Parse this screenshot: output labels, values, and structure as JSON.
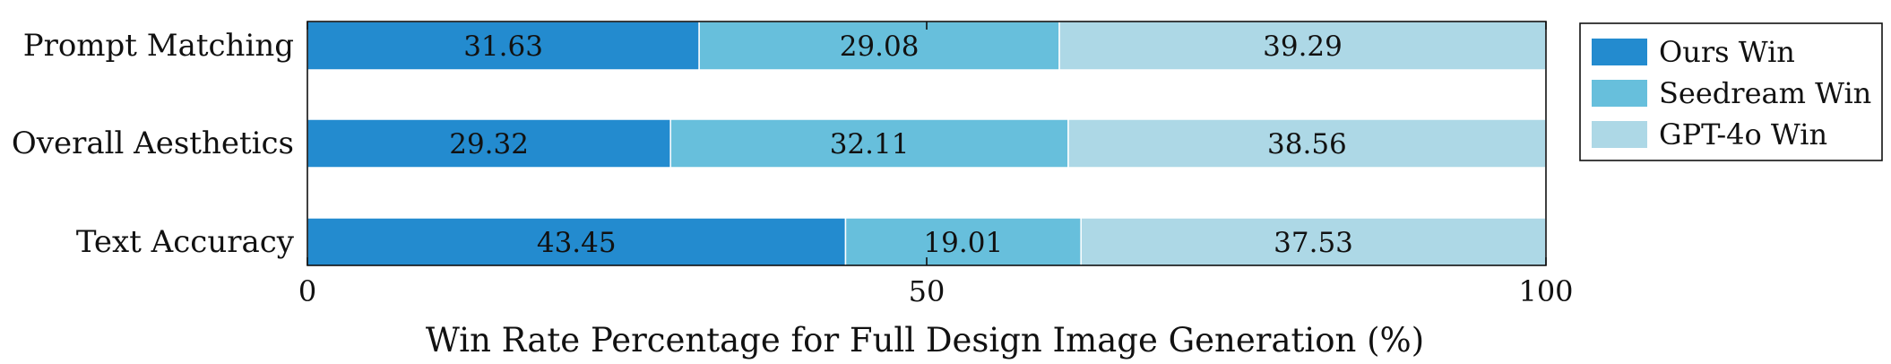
{
  "chart_data": {
    "type": "bar",
    "orientation": "horizontal",
    "stacked": true,
    "categories": [
      "Prompt Matching",
      "Overall Aesthetics",
      "Text Accuracy"
    ],
    "series": [
      {
        "name": "Ours Win",
        "values": [
          31.63,
          29.32,
          43.45
        ],
        "color": "#238bcf"
      },
      {
        "name": "Seedream Win",
        "values": [
          29.08,
          32.11,
          19.01
        ],
        "color": "#67bfdc"
      },
      {
        "name": "GPT-4o Win",
        "values": [
          39.29,
          38.56,
          37.53
        ],
        "color": "#add8e6"
      }
    ],
    "data_labels": [
      [
        "31.63",
        "29.08",
        "39.29"
      ],
      [
        "29.32",
        "32.11",
        "38.56"
      ],
      [
        "43.45",
        "19.01",
        "37.53"
      ]
    ],
    "xlabel": "Win Rate Percentage for Full Design Image Generation (%)",
    "ylabel": "",
    "xlim": [
      0,
      100
    ],
    "xticks": [
      0,
      50,
      100
    ],
    "xtick_labels": [
      "0",
      "50",
      "100"
    ],
    "grid": false,
    "legend": {
      "position": "right",
      "entries": [
        "Ours Win",
        "Seedream Win",
        "GPT-4o Win"
      ]
    }
  }
}
